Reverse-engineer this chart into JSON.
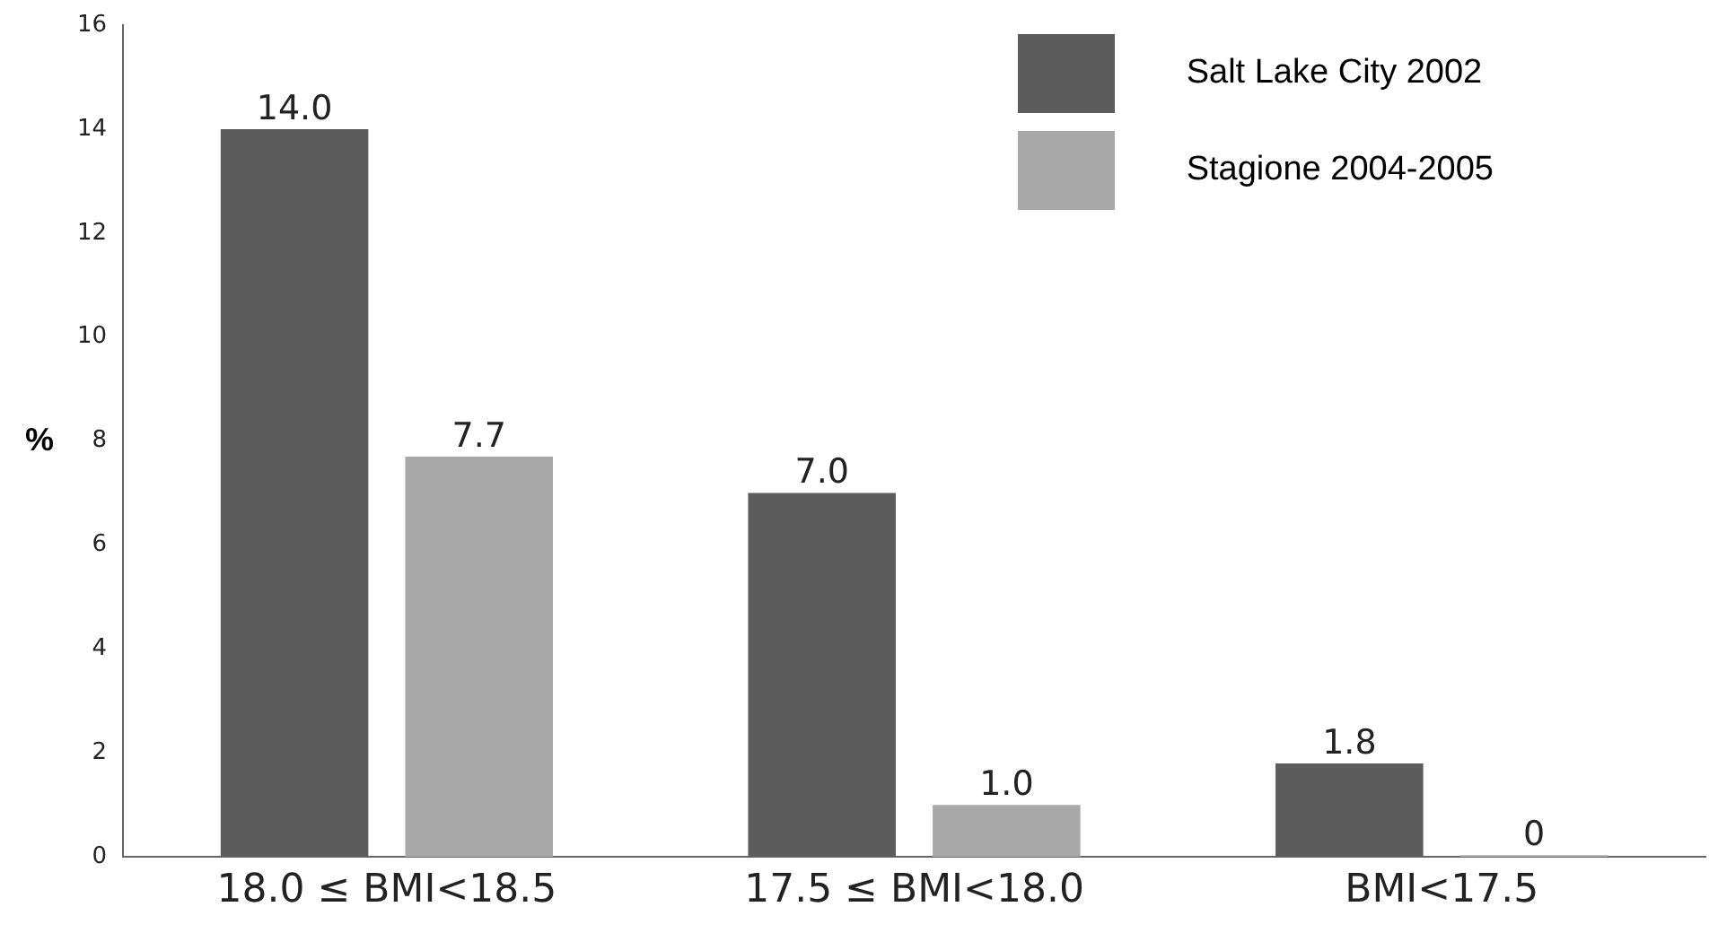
{
  "chart_data": {
    "type": "bar",
    "ylabel": "%",
    "categories": [
      "18.0 ≤ BMI<18.5",
      "17.5 ≤ BMI<18.0",
      "BMI<17.5"
    ],
    "series": [
      {
        "name": "Salt Lake City 2002",
        "color": "#5c5c5c",
        "values": [
          14.0,
          7.0,
          1.8
        ],
        "value_labels": [
          "14.0",
          "7.0",
          "1.8"
        ]
      },
      {
        "name": "Stagione 2004-2005",
        "color": "#a8a8a8",
        "values": [
          7.7,
          1.0,
          0
        ],
        "value_labels": [
          "7.7",
          "1.0",
          "0"
        ]
      }
    ],
    "ylim": [
      0,
      16
    ],
    "yticks": [
      0,
      2,
      4,
      6,
      8,
      10,
      12,
      14,
      16
    ],
    "grid": false,
    "legend": "top right"
  }
}
